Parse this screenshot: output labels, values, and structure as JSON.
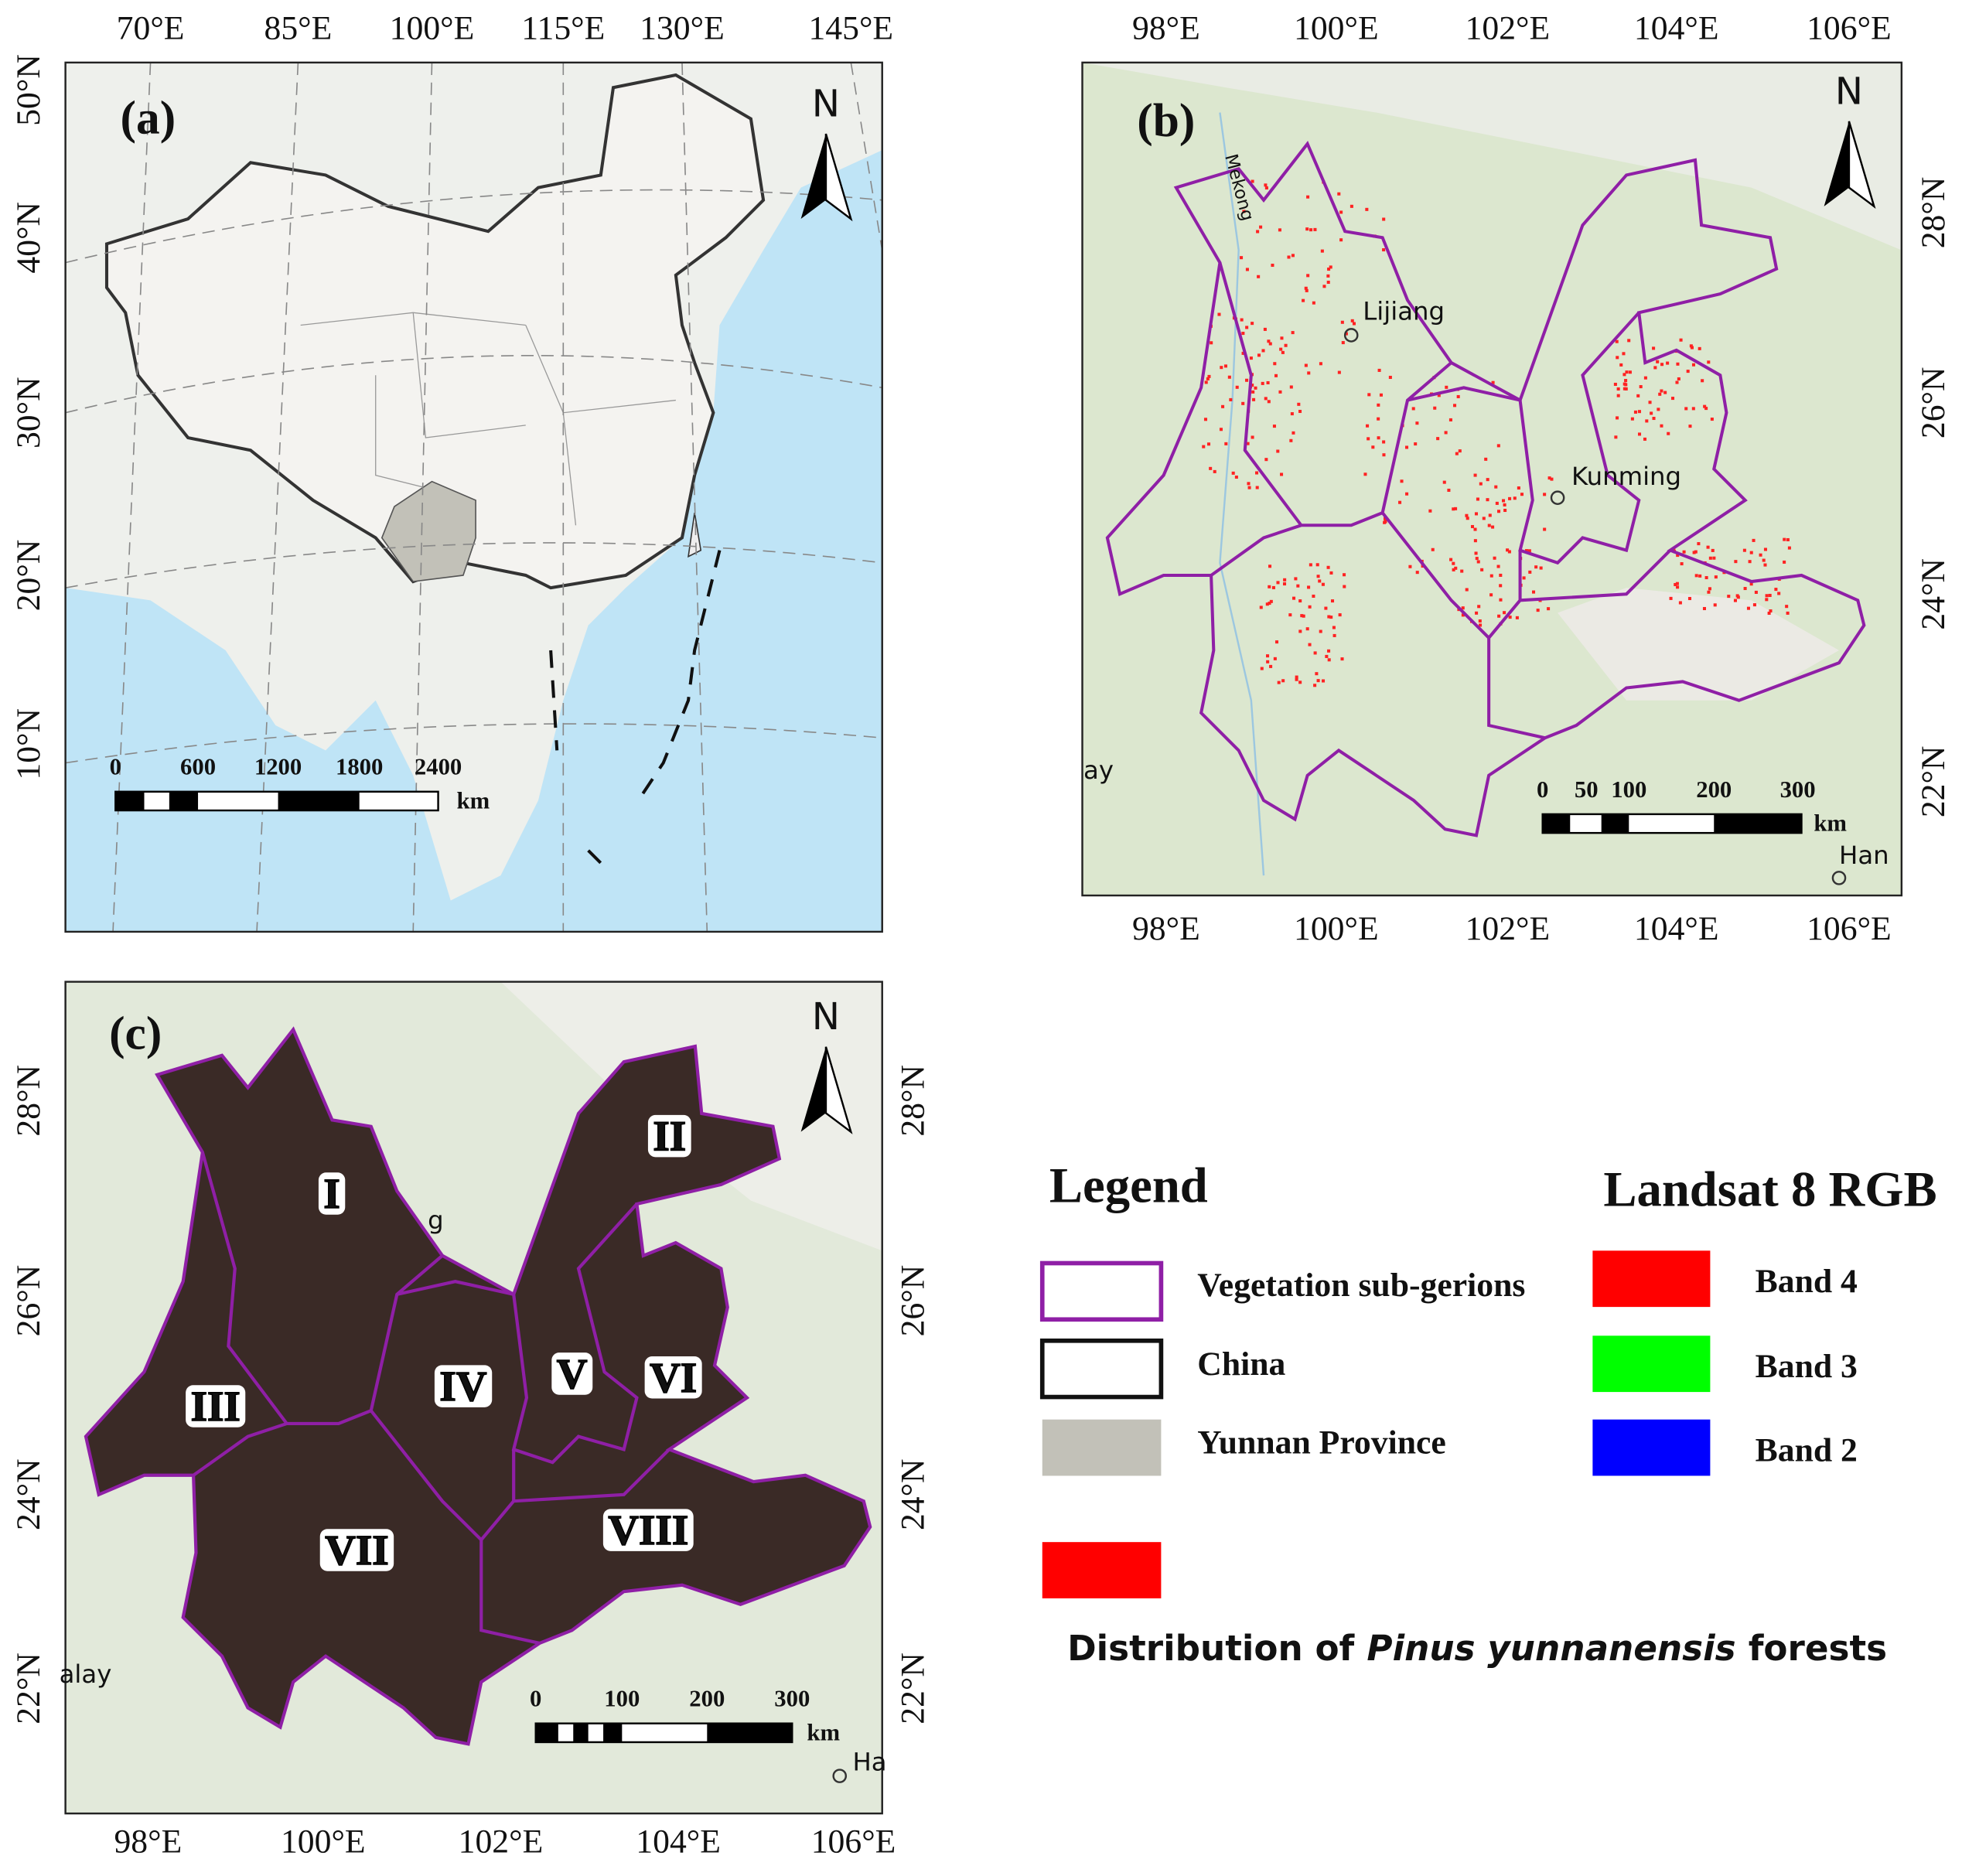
{
  "panels": [
    {
      "label": "(a)",
      "top_ticks": [
        "70°E",
        "85°E",
        "100°E",
        "115°E",
        "130°E",
        "145°E"
      ],
      "left_ticks": [
        "50°N",
        "40°N",
        "30°N",
        "20°N",
        "10°N"
      ],
      "north": "N",
      "scale_labels": [
        "0",
        "600",
        "1200",
        "1800",
        "2400"
      ],
      "scale_unit": "km"
    },
    {
      "label": "(b)",
      "top_ticks": [
        "98°E",
        "100°E",
        "102°E",
        "104°E",
        "106°E"
      ],
      "bottom_ticks": [
        "98°E",
        "100°E",
        "102°E",
        "104°E",
        "106°E"
      ],
      "right_ticks": [
        "28°N",
        "26°N",
        "24°N",
        "22°N"
      ],
      "north": "N",
      "places": [
        "Mekong",
        "Lijiang",
        "Kunming",
        "ay",
        "Han"
      ],
      "scale_labels": [
        "0",
        "50",
        "100",
        "200",
        "300"
      ],
      "scale_unit": "km"
    },
    {
      "label": "(c)",
      "bottom_ticks": [
        "98°E",
        "100°E",
        "102°E",
        "104°E",
        "106°E"
      ],
      "left_ticks": [
        "28°N",
        "26°N",
        "24°N",
        "22°N"
      ],
      "right_ticks": [
        "28°N",
        "26°N",
        "24°N",
        "22°N"
      ],
      "north": "N",
      "places": [
        "alay",
        "Ha",
        "g"
      ],
      "regions": [
        "I",
        "II",
        "III",
        "IV",
        "V",
        "VI",
        "VII",
        "VIII"
      ],
      "scale_labels": [
        "0",
        "100",
        "200",
        "300"
      ],
      "scale_unit": "km"
    }
  ],
  "legend": {
    "title": "Legend",
    "items": [
      "Vegetation sub-gerions",
      "China",
      "Yunnan Province"
    ],
    "rgb_title": "Landsat 8 RGB",
    "bands": [
      "Band 4",
      "Band 3",
      "Band 2"
    ],
    "distribution": [
      "Distribution of",
      "Pinus yunnanensis",
      "forests"
    ]
  }
}
